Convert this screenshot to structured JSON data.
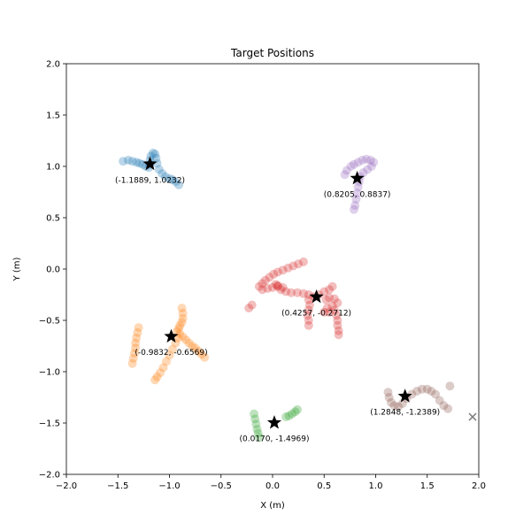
{
  "chart_data": {
    "type": "scatter",
    "title": "Target Positions",
    "xlabel": "X (m)",
    "ylabel": "Y (m)",
    "xlim": [
      -2.0,
      2.0
    ],
    "ylim": [
      -2.0,
      2.0
    ],
    "xticks": [
      -2.0,
      -1.5,
      -1.0,
      -0.5,
      0.0,
      0.5,
      1.0,
      1.5,
      2.0
    ],
    "yticks": [
      -2.0,
      -1.5,
      -1.0,
      -0.5,
      0.0,
      0.5,
      1.0,
      1.5,
      2.0
    ],
    "xtick_labels": [
      "−2.0",
      "−1.5",
      "−1.0",
      "−0.5",
      "0.0",
      "0.5",
      "1.0",
      "1.5",
      "2.0"
    ],
    "ytick_labels": [
      "−2.0",
      "−1.5",
      "−1.0",
      "−0.5",
      "0.0",
      "0.5",
      "1.0",
      "1.5",
      "2.0"
    ],
    "grid": false,
    "series": [
      {
        "color": "#1f77b4",
        "points": [
          [
            -1.45,
            1.05
          ],
          [
            -1.4,
            1.06
          ],
          [
            -1.36,
            1.05
          ],
          [
            -1.32,
            1.04
          ],
          [
            -1.29,
            1.03
          ],
          [
            -1.26,
            1.02
          ],
          [
            -1.23,
            1.0
          ],
          [
            -1.2,
            0.99
          ],
          [
            -1.19,
            1.02
          ],
          [
            -1.19,
            1.06
          ],
          [
            -1.18,
            1.1
          ],
          [
            -1.16,
            1.13
          ],
          [
            -1.14,
            1.12
          ],
          [
            -1.13,
            1.08
          ],
          [
            -1.12,
            1.03
          ],
          [
            -1.1,
            0.97
          ],
          [
            -1.07,
            0.93
          ],
          [
            -1.04,
            0.9
          ],
          [
            -1.0,
            0.88
          ],
          [
            -0.97,
            0.87
          ],
          [
            -0.94,
            0.85
          ],
          [
            -0.91,
            0.82
          ]
        ]
      },
      {
        "color": "#9467bd",
        "points": [
          [
            0.76,
            1.0
          ],
          [
            0.79,
            1.02
          ],
          [
            0.83,
            1.04
          ],
          [
            0.87,
            1.06
          ],
          [
            0.91,
            1.07
          ],
          [
            0.95,
            1.06
          ],
          [
            0.98,
            1.04
          ],
          [
            0.96,
            1.0
          ],
          [
            0.92,
            0.97
          ],
          [
            0.88,
            0.94
          ],
          [
            0.85,
            0.9
          ],
          [
            0.84,
            0.85
          ],
          [
            0.83,
            0.8
          ],
          [
            0.82,
            0.74
          ],
          [
            0.81,
            0.68
          ],
          [
            0.8,
            0.62
          ],
          [
            0.79,
            0.58
          ],
          [
            0.72,
            0.96
          ],
          [
            0.7,
            0.92
          ]
        ]
      },
      {
        "color": "#d62728",
        "points": [
          [
            -0.13,
            -0.17
          ],
          [
            -0.1,
            -0.14
          ],
          [
            -0.07,
            -0.11
          ],
          [
            -0.03,
            -0.08
          ],
          [
            0.01,
            -0.05
          ],
          [
            0.05,
            -0.03
          ],
          [
            0.1,
            -0.01
          ],
          [
            0.15,
            0.01
          ],
          [
            0.2,
            0.03
          ],
          [
            0.25,
            0.05
          ],
          [
            0.3,
            0.07
          ],
          [
            -0.1,
            -0.2
          ],
          [
            -0.05,
            -0.19
          ],
          [
            0.0,
            -0.18
          ],
          [
            0.05,
            -0.17
          ],
          [
            0.1,
            -0.18
          ],
          [
            0.05,
            -0.16
          ],
          [
            0.03,
            -0.15
          ],
          [
            0.08,
            -0.2
          ],
          [
            0.13,
            -0.22
          ],
          [
            0.18,
            -0.23
          ],
          [
            0.24,
            -0.23
          ],
          [
            0.3,
            -0.24
          ],
          [
            0.35,
            -0.25
          ],
          [
            0.4,
            -0.27
          ],
          [
            0.45,
            -0.25
          ],
          [
            0.5,
            -0.22
          ],
          [
            0.55,
            -0.2
          ],
          [
            0.58,
            -0.17
          ],
          [
            0.52,
            -0.3
          ],
          [
            0.55,
            -0.28
          ],
          [
            0.6,
            -0.29
          ],
          [
            0.63,
            -0.33
          ],
          [
            0.58,
            -0.36
          ],
          [
            0.53,
            -0.38
          ],
          [
            0.5,
            -0.42
          ],
          [
            0.55,
            -0.42
          ],
          [
            0.6,
            -0.4
          ],
          [
            0.62,
            -0.45
          ],
          [
            0.63,
            -0.5
          ],
          [
            0.63,
            -0.55
          ],
          [
            0.64,
            -0.6
          ],
          [
            0.64,
            -0.64
          ],
          [
            0.35,
            -0.3
          ],
          [
            0.36,
            -0.35
          ],
          [
            0.35,
            -0.4
          ],
          [
            0.34,
            -0.45
          ],
          [
            0.35,
            -0.5
          ],
          [
            0.35,
            -0.55
          ],
          [
            -0.2,
            -0.35
          ],
          [
            -0.23,
            -0.38
          ]
        ]
      },
      {
        "color": "#ff7f0e",
        "points": [
          [
            -1.3,
            -0.57
          ],
          [
            -1.31,
            -0.62
          ],
          [
            -1.32,
            -0.67
          ],
          [
            -1.33,
            -0.72
          ],
          [
            -1.33,
            -0.77
          ],
          [
            -1.34,
            -0.82
          ],
          [
            -1.35,
            -0.87
          ],
          [
            -1.36,
            -0.92
          ],
          [
            -0.88,
            -0.38
          ],
          [
            -0.87,
            -0.43
          ],
          [
            -0.87,
            -0.48
          ],
          [
            -0.88,
            -0.52
          ],
          [
            -0.9,
            -0.55
          ],
          [
            -0.91,
            -0.58
          ],
          [
            -0.93,
            -0.61
          ],
          [
            -0.9,
            -0.63
          ],
          [
            -0.87,
            -0.66
          ],
          [
            -0.84,
            -0.69
          ],
          [
            -0.81,
            -0.72
          ],
          [
            -0.78,
            -0.75
          ],
          [
            -0.75,
            -0.77
          ],
          [
            -0.72,
            -0.8
          ],
          [
            -0.69,
            -0.83
          ],
          [
            -0.66,
            -0.86
          ],
          [
            -0.92,
            -0.67
          ],
          [
            -0.94,
            -0.72
          ],
          [
            -0.97,
            -0.78
          ],
          [
            -1.0,
            -0.84
          ],
          [
            -1.03,
            -0.9
          ],
          [
            -1.06,
            -0.96
          ],
          [
            -1.09,
            -1.01
          ],
          [
            -1.12,
            -1.05
          ],
          [
            -1.14,
            -1.08
          ]
        ]
      },
      {
        "color": "#8c564b",
        "points": [
          [
            1.12,
            -1.2
          ],
          [
            1.13,
            -1.25
          ],
          [
            1.15,
            -1.3
          ],
          [
            1.18,
            -1.33
          ],
          [
            1.22,
            -1.34
          ],
          [
            1.26,
            -1.31
          ],
          [
            1.3,
            -1.26
          ],
          [
            1.35,
            -1.22
          ],
          [
            1.4,
            -1.19
          ],
          [
            1.45,
            -1.17
          ],
          [
            1.5,
            -1.17
          ],
          [
            1.54,
            -1.19
          ],
          [
            1.58,
            -1.22
          ],
          [
            1.62,
            -1.28
          ],
          [
            1.66,
            -1.33
          ],
          [
            1.7,
            -1.36
          ],
          [
            1.72,
            -1.14
          ]
        ]
      },
      {
        "color": "#2ca02c",
        "points": [
          [
            -0.18,
            -1.41
          ],
          [
            -0.17,
            -1.46
          ],
          [
            -0.16,
            -1.51
          ],
          [
            -0.15,
            -1.56
          ],
          [
            -0.14,
            -1.6
          ],
          [
            -0.13,
            -1.64
          ],
          [
            0.13,
            -1.44
          ],
          [
            0.16,
            -1.43
          ],
          [
            0.19,
            -1.41
          ],
          [
            0.22,
            -1.39
          ],
          [
            0.24,
            -1.37
          ]
        ]
      }
    ],
    "targets": [
      {
        "x": -1.1889,
        "y": 1.0232,
        "label": "(-1.1889, 1.0232)"
      },
      {
        "x": 0.8205,
        "y": 0.8837,
        "label": "(0.8205, 0.8837)"
      },
      {
        "x": 0.4257,
        "y": -0.2712,
        "label": "(0.4257, -0.2712)"
      },
      {
        "x": -0.9832,
        "y": -0.6569,
        "label": "(-0.9832, -0.6569)"
      },
      {
        "x": 1.2848,
        "y": -1.2389,
        "label": "(1.2848, -1.2389)"
      },
      {
        "x": 0.017,
        "y": -1.4969,
        "label": "(0.0170, -1.4969)"
      }
    ],
    "extra_markers": [
      {
        "x": 1.94,
        "y": -1.44,
        "marker": "x",
        "color": "#7f7f7f"
      }
    ]
  }
}
